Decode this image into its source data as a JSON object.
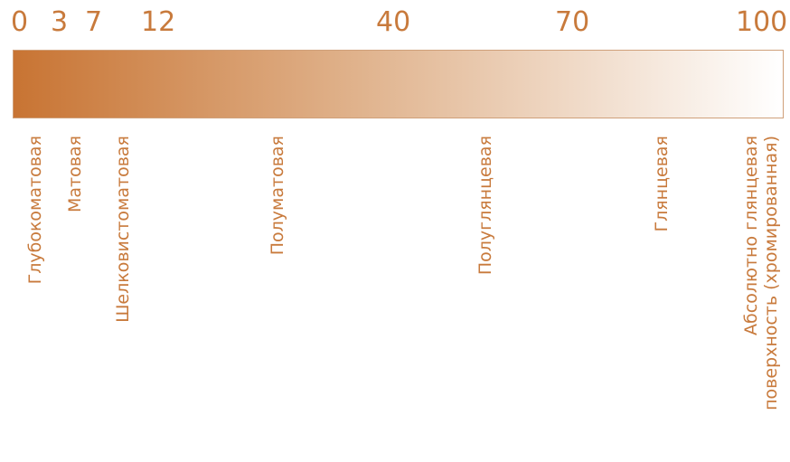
{
  "scale": {
    "ticks": [
      "0",
      "3",
      "7",
      "12",
      "40",
      "70",
      "100"
    ],
    "colors": {
      "start": "#c87433",
      "end": "#ffffff",
      "text": "#c87a3c",
      "border": "#cfa07a"
    }
  },
  "categories": [
    {
      "label": "Глубокоматовая"
    },
    {
      "label": "Матовая"
    },
    {
      "label": "Шелковистоматовая"
    },
    {
      "label": "Полуматовая"
    },
    {
      "label": "Полуглянцевая"
    },
    {
      "label": "Глянцевая"
    },
    {
      "label_line1": "Абсолютно глянцевая",
      "label_line2": "поверхность (хромированная)"
    }
  ]
}
